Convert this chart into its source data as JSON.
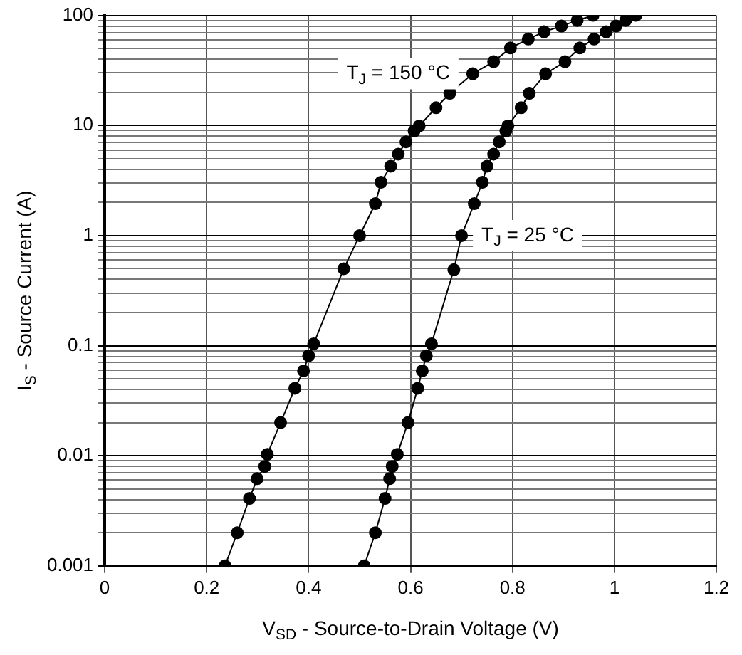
{
  "chart_data": {
    "type": "line",
    "xlabel": "V$_{SD}$ - Source-to-Drain Voltage (V)",
    "ylabel": "I$_{S}$ - Source Current (A)",
    "log": "y",
    "grid": true,
    "marker": "circle",
    "line_style": "solid",
    "legend": false,
    "xlim": [
      0,
      1.2
    ],
    "xticks": [
      0,
      0.2,
      0.4,
      0.6,
      0.8,
      1,
      1.2
    ],
    "ylim": [
      0.001,
      100
    ],
    "yticks": [
      0.001,
      0.01,
      0.1,
      1,
      10,
      100
    ],
    "series": [
      {
        "name": "T$_{J}$ = 150 °C",
        "color": "#000000",
        "x": [
          0.236,
          0.26,
          0.284,
          0.299,
          0.314,
          0.319,
          0.345,
          0.373,
          0.39,
          0.4,
          0.41,
          0.469,
          0.5,
          0.531,
          0.542,
          0.561,
          0.576,
          0.591,
          0.607,
          0.617,
          0.65,
          0.677,
          0.722,
          0.763,
          0.796,
          0.831,
          0.862,
          0.896,
          0.927,
          0.958
        ],
        "values": [
          0.001,
          0.002,
          0.0041,
          0.0062,
          0.008,
          0.0103,
          0.02,
          0.041,
          0.059,
          0.081,
          0.104,
          0.5,
          1,
          1.95,
          3.05,
          4.27,
          5.5,
          7.1,
          8.9,
          9.9,
          14.5,
          19.6,
          29.5,
          38,
          50.6,
          61,
          71,
          80,
          90,
          100
        ]
      },
      {
        "name": "T$_{J}$ = 25 °C",
        "color": "#000000",
        "x": [
          0.509,
          0.531,
          0.55,
          0.559,
          0.564,
          0.574,
          0.595,
          0.614,
          0.623,
          0.631,
          0.641,
          0.685,
          0.7,
          0.725,
          0.741,
          0.75,
          0.763,
          0.774,
          0.787,
          0.791,
          0.817,
          0.833,
          0.865,
          0.903,
          0.932,
          0.96,
          0.984,
          1.003,
          1.022,
          1.042
        ],
        "values": [
          0.001,
          0.002,
          0.0041,
          0.0062,
          0.008,
          0.0103,
          0.02,
          0.041,
          0.059,
          0.081,
          0.104,
          0.49,
          1,
          1.95,
          3.05,
          4.27,
          5.5,
          7.1,
          8.9,
          9.9,
          14.5,
          19.6,
          29.5,
          38,
          50.6,
          61,
          71,
          80,
          90,
          100
        ]
      }
    ]
  }
}
